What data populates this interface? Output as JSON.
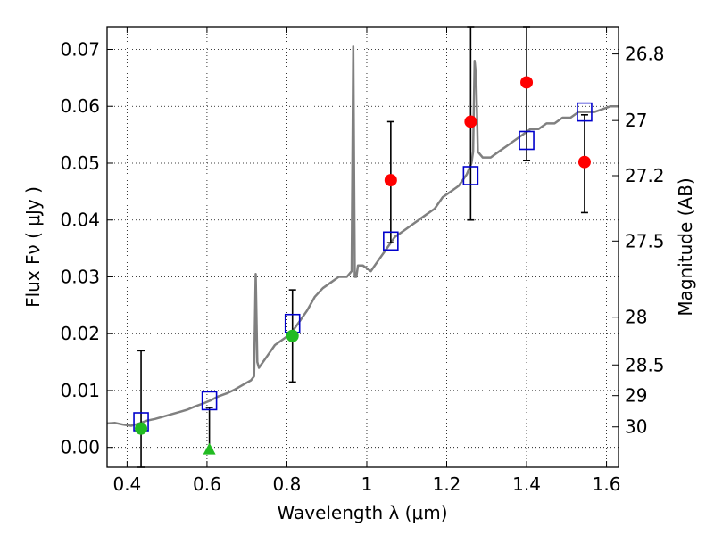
{
  "chart_data": {
    "type": "line",
    "title": "",
    "xlabel": "Wavelength  λ (μm)",
    "ylabel": "Flux  Fν  ( μJy )",
    "ylabel_right": "Magnitude (AB)",
    "xlim": [
      0.35,
      1.63
    ],
    "ylim": [
      -0.0035,
      0.074
    ],
    "grid": true,
    "x_ticks": [
      0.4,
      0.6,
      0.8,
      1.0,
      1.2,
      1.4,
      1.6
    ],
    "x_tick_labels": [
      "0.4",
      "0.6",
      "0.8",
      "1",
      "1.2",
      "1.4",
      "1.6"
    ],
    "y_ticks": [
      0.0,
      0.01,
      0.02,
      0.03,
      0.04,
      0.05,
      0.06,
      0.07
    ],
    "y_tick_labels": [
      "0.00",
      "0.01",
      "0.02",
      "0.03",
      "0.04",
      "0.05",
      "0.06",
      "0.07"
    ],
    "mag_ticks": [
      {
        "label": "26.8",
        "flux": 0.0692
      },
      {
        "label": "27",
        "flux": 0.0575
      },
      {
        "label": "27.2",
        "flux": 0.0478
      },
      {
        "label": "27.5",
        "flux": 0.0363
      },
      {
        "label": "28",
        "flux": 0.0229
      },
      {
        "label": "28.5",
        "flux": 0.0145
      },
      {
        "label": "29",
        "flux": 0.0091
      },
      {
        "label": "30",
        "flux": 0.0036
      }
    ],
    "colors": {
      "model": "#808080",
      "model_photometry": "#0000cc",
      "detections": "#ff0000",
      "optical_points": "#22bb22",
      "errorbars": "#000000"
    },
    "series": [
      {
        "kind": "model_spectrum",
        "x": [
          0.35,
          0.37,
          0.39,
          0.41,
          0.43,
          0.45,
          0.47,
          0.49,
          0.51,
          0.53,
          0.55,
          0.57,
          0.59,
          0.61,
          0.63,
          0.65,
          0.67,
          0.69,
          0.71,
          0.718,
          0.722,
          0.726,
          0.73,
          0.75,
          0.77,
          0.79,
          0.81,
          0.83,
          0.85,
          0.87,
          0.89,
          0.91,
          0.93,
          0.95,
          0.962,
          0.966,
          0.97,
          0.974,
          0.978,
          0.99,
          1.01,
          1.03,
          1.05,
          1.07,
          1.09,
          1.11,
          1.13,
          1.15,
          1.17,
          1.19,
          1.21,
          1.23,
          1.25,
          1.262,
          1.266,
          1.27,
          1.274,
          1.278,
          1.29,
          1.31,
          1.33,
          1.35,
          1.37,
          1.39,
          1.41,
          1.43,
          1.45,
          1.47,
          1.49,
          1.51,
          1.53,
          1.55,
          1.57,
          1.59,
          1.61,
          1.63
        ],
        "y": [
          0.0042,
          0.0043,
          0.004,
          0.0038,
          0.0042,
          0.0047,
          0.005,
          0.0054,
          0.0058,
          0.0062,
          0.0066,
          0.0072,
          0.0077,
          0.0083,
          0.009,
          0.0095,
          0.0102,
          0.011,
          0.0118,
          0.0125,
          0.0305,
          0.015,
          0.014,
          0.016,
          0.018,
          0.019,
          0.02,
          0.022,
          0.024,
          0.0265,
          0.028,
          0.029,
          0.03,
          0.03,
          0.031,
          0.0705,
          0.03,
          0.03,
          0.032,
          0.032,
          0.031,
          0.033,
          0.035,
          0.037,
          0.038,
          0.039,
          0.04,
          0.041,
          0.042,
          0.044,
          0.045,
          0.046,
          0.048,
          0.05,
          0.052,
          0.068,
          0.065,
          0.052,
          0.051,
          0.051,
          0.052,
          0.053,
          0.054,
          0.055,
          0.056,
          0.056,
          0.057,
          0.057,
          0.058,
          0.058,
          0.059,
          0.059,
          0.059,
          0.0595,
          0.06,
          0.06
        ]
      },
      {
        "kind": "model_photometry",
        "marker": "open-square",
        "x": [
          0.435,
          0.606,
          0.814,
          1.06,
          1.26,
          1.4,
          1.545
        ],
        "y": [
          0.0045,
          0.0082,
          0.0218,
          0.0363,
          0.0478,
          0.054,
          0.059
        ]
      },
      {
        "kind": "detections",
        "marker": "filled-circle",
        "x": [
          1.06,
          1.26,
          1.4,
          1.545
        ],
        "y": [
          0.047,
          0.0573,
          0.0642,
          0.0502
        ],
        "err_low": [
          0.036,
          0.04,
          0.0505,
          0.0413
        ],
        "err_high": [
          0.0573,
          0.074,
          0.074,
          0.0585
        ]
      },
      {
        "kind": "optical_points",
        "marker": "filled-circle",
        "x": [
          0.435,
          0.814
        ],
        "y": [
          0.0033,
          0.0196
        ],
        "err_low": [
          -0.0035,
          0.0115
        ],
        "err_high": [
          0.017,
          0.0277
        ]
      },
      {
        "kind": "upper_limit",
        "marker": "filled-triangle",
        "x": [
          0.606
        ],
        "y": [
          -0.0003
        ],
        "err_low": [
          -0.0003
        ],
        "err_high": [
          0.007
        ]
      }
    ]
  }
}
